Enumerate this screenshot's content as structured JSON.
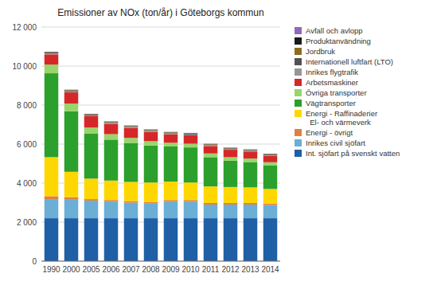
{
  "chart_data": {
    "type": "bar",
    "stacked": true,
    "title": "Emissioner av NOx (ton/år) i Göteborgs kommun",
    "categories": [
      "1990",
      "2000",
      "2005",
      "2006",
      "2007",
      "2008",
      "2009",
      "2010",
      "2011",
      "2012",
      "2013",
      "2014"
    ],
    "series": [
      {
        "name": "Int. sjöfart på svenskt vatten",
        "color": "#1f5fa6",
        "values": [
          2200,
          2200,
          2200,
          2200,
          2200,
          2200,
          2200,
          2200,
          2200,
          2200,
          2200,
          2200
        ]
      },
      {
        "name": "Inrikes civil sjöfart",
        "color": "#6baed6",
        "values": [
          950,
          950,
          900,
          850,
          800,
          750,
          850,
          850,
          700,
          700,
          700,
          680
        ]
      },
      {
        "name": "Energi - övrigt",
        "color": "#e08040",
        "values": [
          180,
          130,
          80,
          80,
          80,
          80,
          80,
          80,
          80,
          80,
          80,
          70
        ]
      },
      {
        "name": "Energi - Raffinaderier\n  El- och värmeverk",
        "color": "#ffd700",
        "values": [
          2000,
          1300,
          1050,
          1000,
          980,
          1000,
          950,
          900,
          850,
          820,
          800,
          750
        ]
      },
      {
        "name": "Vägtransporter",
        "color": "#2ca02c",
        "values": [
          4300,
          3100,
          2300,
          2100,
          2000,
          1900,
          1800,
          1800,
          1500,
          1350,
          1300,
          1200
        ]
      },
      {
        "name": "Övriga transporter",
        "color": "#98d56b",
        "values": [
          450,
          400,
          320,
          280,
          260,
          220,
          190,
          190,
          190,
          180,
          180,
          170
        ]
      },
      {
        "name": "Arbetsmaskiner",
        "color": "#d62728",
        "values": [
          520,
          570,
          580,
          530,
          510,
          480,
          430,
          430,
          380,
          380,
          360,
          330
        ]
      },
      {
        "name": "Inrikes flygtrafik",
        "color": "#969696",
        "values": [
          50,
          55,
          45,
          45,
          45,
          45,
          45,
          45,
          40,
          35,
          35,
          35
        ]
      },
      {
        "name": "Internationell luftfart (LTO)",
        "color": "#525252",
        "values": [
          40,
          45,
          45,
          45,
          45,
          45,
          45,
          45,
          40,
          40,
          40,
          40
        ]
      },
      {
        "name": "Jordbruk",
        "color": "#8c6d1f",
        "values": [
          25,
          20,
          18,
          18,
          18,
          18,
          18,
          18,
          18,
          18,
          18,
          18
        ]
      },
      {
        "name": "Produktanvändning",
        "color": "#1a1a1a",
        "values": [
          15,
          12,
          10,
          10,
          10,
          10,
          10,
          10,
          10,
          10,
          10,
          10
        ]
      },
      {
        "name": "Avfall och avlopp",
        "color": "#9467bd",
        "values": [
          8,
          8,
          8,
          8,
          8,
          8,
          8,
          8,
          8,
          8,
          8,
          8
        ]
      }
    ],
    "ylim": [
      0,
      12000
    ],
    "yticks": [
      0,
      {
        "value": 2000,
        "label": "2 000"
      },
      {
        "value": 4000,
        "label": "4 000"
      },
      {
        "value": 6000,
        "label": "6 000"
      },
      {
        "value": 8000,
        "label": "8 000"
      },
      {
        "value": 10000,
        "label": "10 000"
      },
      {
        "value": 12000,
        "label": "12 000"
      }
    ],
    "grid": true,
    "legend": "right"
  }
}
